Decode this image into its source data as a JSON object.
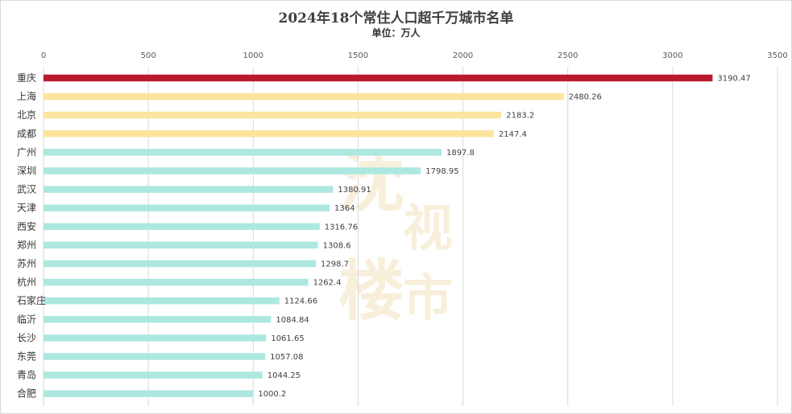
{
  "chart_data": {
    "type": "bar",
    "orientation": "horizontal",
    "title": "2024年18个常住人口超千万城市名单",
    "subtitle": "单位：万人",
    "xlim": [
      0,
      3500
    ],
    "x_ticks": [
      0,
      500,
      1000,
      1500,
      2000,
      2500,
      3000,
      3500
    ],
    "x_axis_position": "top",
    "grid": true,
    "categories": [
      "重庆",
      "上海",
      "北京",
      "成都",
      "广州",
      "深圳",
      "武汉",
      "天津",
      "西安",
      "郑州",
      "苏州",
      "杭州",
      "石家庄",
      "临沂",
      "长沙",
      "东莞",
      "青岛",
      "合肥"
    ],
    "values": [
      3190.47,
      2480.26,
      2183.2,
      2147.4,
      1897.8,
      1798.95,
      1380.91,
      1364,
      1316.76,
      1308.6,
      1298.7,
      1262.4,
      1124.66,
      1084.84,
      1061.65,
      1057.08,
      1044.25,
      1000.2
    ],
    "value_labels": [
      "3190.47",
      "2480.26",
      "2183.2",
      "2147.4",
      "1897.8",
      "1798.95",
      "1380.91",
      "1364",
      "1316.76",
      "1308.6",
      "1298.7",
      "1262.4",
      "1124.66",
      "1084.84",
      "1061.65",
      "1057.08",
      "1044.25",
      "1000.2"
    ],
    "bar_colors": [
      "#b8192f",
      "#fbe49e",
      "#fbe49e",
      "#fbe49e",
      "#ade8e0",
      "#ade8e0",
      "#ade8e0",
      "#ade8e0",
      "#ade8e0",
      "#ade8e0",
      "#ade8e0",
      "#ade8e0",
      "#ade8e0",
      "#ade8e0",
      "#ade8e0",
      "#ade8e0",
      "#ade8e0",
      "#ade8e0"
    ]
  },
  "colors": {
    "top_bar": "#b8192f",
    "tier2_bar": "#fbe49e",
    "other_bar": "#ade8e0",
    "gridline": "#d9d9d9",
    "watermark": "#f3e3bf"
  },
  "watermark": {
    "chars": [
      "沈",
      "视",
      "楼",
      "市"
    ]
  }
}
